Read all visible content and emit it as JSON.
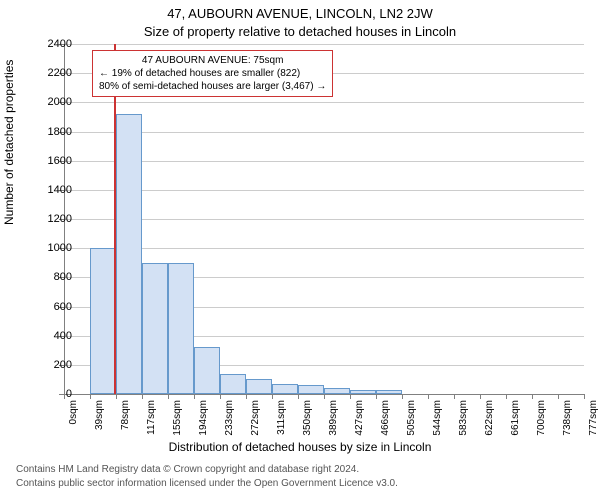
{
  "title_main": "47, AUBOURN AVENUE, LINCOLN, LN2 2JW",
  "title_sub": "Size of property relative to detached houses in Lincoln",
  "y_axis_label": "Number of detached properties",
  "x_axis_label": "Distribution of detached houses by size in Lincoln",
  "footer1": "Contains HM Land Registry data © Crown copyright and database right 2024.",
  "footer2": "Contains public sector information licensed under the Open Government Licence v3.0.",
  "chart": {
    "type": "histogram",
    "background_color": "#ffffff",
    "grid_color": "#cccccc",
    "axis_color": "#808080",
    "bar_fill": "#d3e1f4",
    "bar_border": "#6699cc",
    "bar_border_width": 1,
    "y": {
      "min": 0,
      "max": 2400,
      "step": 200,
      "label_fontsize": 11
    },
    "x": {
      "ticks": [
        "0sqm",
        "39sqm",
        "78sqm",
        "117sqm",
        "155sqm",
        "194sqm",
        "233sqm",
        "272sqm",
        "311sqm",
        "350sqm",
        "389sqm",
        "427sqm",
        "466sqm",
        "505sqm",
        "544sqm",
        "583sqm",
        "622sqm",
        "661sqm",
        "700sqm",
        "738sqm",
        "777sqm"
      ],
      "label_fontsize": 10
    },
    "values": [
      0,
      1000,
      1920,
      900,
      900,
      320,
      140,
      100,
      70,
      60,
      40,
      30,
      30,
      0,
      0,
      0,
      0,
      0,
      0,
      0
    ],
    "marker": {
      "pos_index": 1.92,
      "color": "#cc3333",
      "width": 2
    },
    "callout": {
      "border_color": "#cc3333",
      "line1": "47 AUBOURN AVENUE: 75sqm",
      "line2": "← 19% of detached houses are smaller (822)",
      "line3": "80% of semi-detached houses are larger (3,467) →"
    }
  }
}
